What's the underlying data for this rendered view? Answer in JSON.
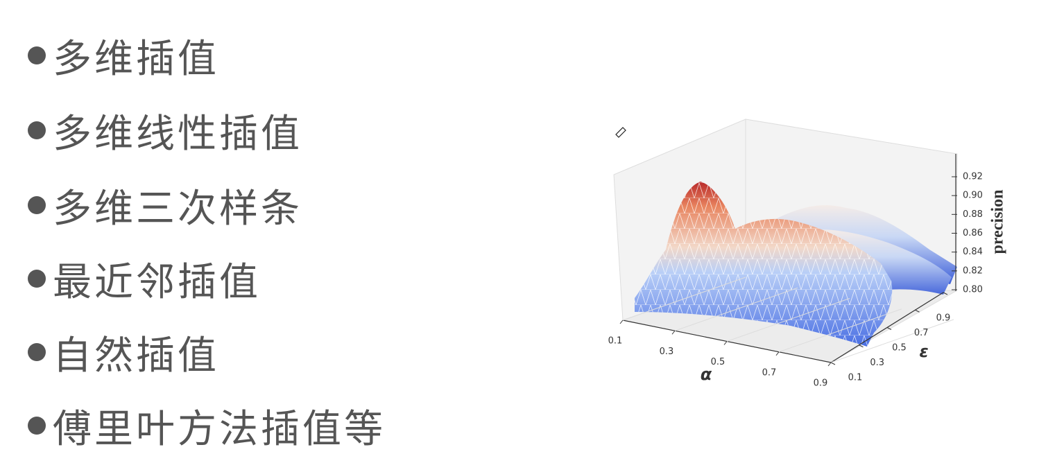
{
  "bullets": [
    "多维插值",
    "多维线性插值",
    "多维三次样条",
    "最近邻插值",
    "自然插值",
    "傅里叶方法插值等"
  ],
  "figure": {
    "type": "surface3d",
    "xlabel": "α",
    "ylabel": "ε",
    "zlabel": "precision",
    "xlim": [
      0.1,
      0.9
    ],
    "xticks": [
      0.1,
      0.3,
      0.5,
      0.7,
      0.9
    ],
    "ylim": [
      0.1,
      0.9
    ],
    "yticks": [
      0.1,
      0.3,
      0.5,
      0.7,
      0.9
    ],
    "zlim": [
      0.8,
      0.92
    ],
    "zticks": [
      {
        "value": 0.8,
        "label": "0.80"
      },
      0.82,
      0.84,
      0.86,
      0.88,
      {
        "value": 0.9,
        "label": "0.90"
      },
      0.92
    ]
  }
}
